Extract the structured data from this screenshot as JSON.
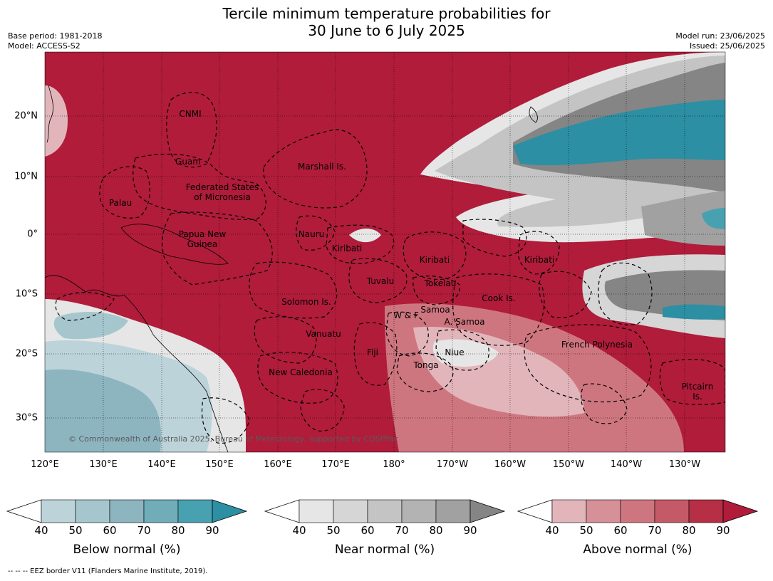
{
  "title_line1": "Tercile minimum temperature probabilities for",
  "title_line2": "30 June to 6 July 2025",
  "meta_left": [
    "Base period: 1981-2018",
    "Model: ACCESS-S2"
  ],
  "meta_right": [
    "Model run: 23/06/2025",
    "Issued: 25/06/2025"
  ],
  "lon_labels": [
    "120°E",
    "130°E",
    "140°E",
    "150°E",
    "160°E",
    "170°E",
    "180°",
    "170°W",
    "160°W",
    "150°W",
    "140°W",
    "130°W"
  ],
  "lat_labels": [
    "20°N",
    "10°N",
    "0°",
    "10°S",
    "20°S",
    "30°S"
  ],
  "regions": {
    "cnmi": "CNMI",
    "guam": "Guam",
    "marshall": "Marshall Is.",
    "fsm1": "Federated States",
    "fsm2": "of Micronesia",
    "palau": "Palau",
    "png1": "Papua New",
    "png2": "Guinea",
    "nauru": "Nauru",
    "kiribati_w": "Kiribati",
    "kiribati_c": "Kiribati",
    "kiribati_e": "Kiribati",
    "tuvalu": "Tuvalu",
    "tokelau": "Tokelau",
    "solomon": "Solomon Is.",
    "wf": "W & F",
    "samoa": "Samoa",
    "asamoa": "A. Samoa",
    "cook": "Cook Is.",
    "vanuatu": "Vanuatu",
    "fiji": "Fiji",
    "niue": "Niue",
    "tonga": "Tonga",
    "french_poly": "French Polynesia",
    "newcal": "New Caledonia",
    "pitcairn1": "Pitcairn",
    "pitcairn2": "Is."
  },
  "copyright": "© Commonwealth of Australia 2025, Bureau of Meteorology, supported by COSPPac",
  "colorbars": [
    {
      "title": "Below normal (%)",
      "ticks": [
        "40",
        "50",
        "60",
        "70",
        "80",
        "90"
      ],
      "colors": [
        "#bdd3da",
        "#a6c6cd",
        "#8db5c0",
        "#70adb9",
        "#48a1b1",
        "#2c8fa3"
      ]
    },
    {
      "title": "Near normal (%)",
      "ticks": [
        "40",
        "50",
        "60",
        "70",
        "80",
        "90"
      ],
      "colors": [
        "#e6e6e6",
        "#d6d6d6",
        "#c4c4c4",
        "#b3b3b3",
        "#a1a1a1",
        "#858585"
      ]
    },
    {
      "title": "Above normal (%)",
      "ticks": [
        "40",
        "50",
        "60",
        "70",
        "80",
        "90"
      ],
      "colors": [
        "#e2b5bb",
        "#d69098",
        "#ce7680",
        "#c45968",
        "#b62f45",
        "#b01c3a"
      ]
    }
  ],
  "colors": {
    "above_high": "#b01c3a",
    "near_high": "#858585",
    "below_high": "#2c8fa3"
  },
  "footer": "--  --  -- EEZ border V11 (Flanders Marine Institute, 2019)."
}
